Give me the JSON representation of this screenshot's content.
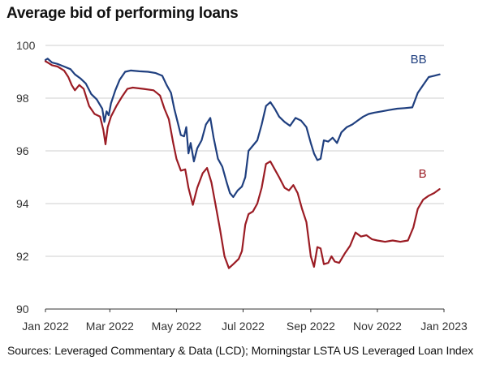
{
  "chart_data": {
    "type": "line",
    "title": "Average bid of performing loans",
    "xlabel": "",
    "ylabel": "",
    "source": "Sources: Leveraged Commentary & Data (LCD); Morningstar LSTA US Leveraged Loan Index",
    "ylim": [
      90,
      100
    ],
    "yticks": [
      90,
      92,
      94,
      96,
      98,
      100
    ],
    "xticks": [
      {
        "label": "Jan 2022",
        "value": "2022-01-01"
      },
      {
        "label": "Mar 2022",
        "value": "2022-03-01"
      },
      {
        "label": "May 2022",
        "value": "2022-05-01"
      },
      {
        "label": "Jul 2022",
        "value": "2022-07-01"
      },
      {
        "label": "Sep 2022",
        "value": "2022-09-01"
      },
      {
        "label": "Nov 2022",
        "value": "2022-11-01"
      },
      {
        "label": "Jan 2023",
        "value": "2023-01-01"
      }
    ],
    "xlim": [
      "2022-01-01",
      "2023-01-01"
    ],
    "grid": "horizontal",
    "legend": "inline labels at line ends",
    "series": [
      {
        "name": "BB",
        "color": "#1f3f7f",
        "points": [
          [
            "2022-01-01",
            99.45
          ],
          [
            "2022-01-03",
            99.5
          ],
          [
            "2022-01-07",
            99.35
          ],
          [
            "2022-01-12",
            99.3
          ],
          [
            "2022-01-18",
            99.2
          ],
          [
            "2022-01-24",
            99.1
          ],
          [
            "2022-01-28",
            98.9
          ],
          [
            "2022-02-02",
            98.75
          ],
          [
            "2022-02-07",
            98.55
          ],
          [
            "2022-02-12",
            98.15
          ],
          [
            "2022-02-17",
            97.95
          ],
          [
            "2022-02-22",
            97.6
          ],
          [
            "2022-02-24",
            97.1
          ],
          [
            "2022-02-26",
            97.5
          ],
          [
            "2022-02-28",
            97.35
          ],
          [
            "2022-03-02",
            97.8
          ],
          [
            "2022-03-06",
            98.3
          ],
          [
            "2022-03-10",
            98.7
          ],
          [
            "2022-03-15",
            99.0
          ],
          [
            "2022-03-20",
            99.05
          ],
          [
            "2022-03-28",
            99.02
          ],
          [
            "2022-04-05",
            99.0
          ],
          [
            "2022-04-12",
            98.95
          ],
          [
            "2022-04-18",
            98.85
          ],
          [
            "2022-04-22",
            98.5
          ],
          [
            "2022-04-26",
            98.2
          ],
          [
            "2022-04-29",
            97.6
          ],
          [
            "2022-05-02",
            97.1
          ],
          [
            "2022-05-05",
            96.6
          ],
          [
            "2022-05-08",
            96.55
          ],
          [
            "2022-05-10",
            96.9
          ],
          [
            "2022-05-12",
            95.9
          ],
          [
            "2022-05-14",
            96.3
          ],
          [
            "2022-05-17",
            95.6
          ],
          [
            "2022-05-20",
            96.1
          ],
          [
            "2022-05-24",
            96.4
          ],
          [
            "2022-05-28",
            97.0
          ],
          [
            "2022-06-01",
            97.25
          ],
          [
            "2022-06-04",
            96.5
          ],
          [
            "2022-06-08",
            95.7
          ],
          [
            "2022-06-12",
            95.4
          ],
          [
            "2022-06-16",
            94.8
          ],
          [
            "2022-06-19",
            94.4
          ],
          [
            "2022-06-22",
            94.25
          ],
          [
            "2022-06-26",
            94.5
          ],
          [
            "2022-06-30",
            94.65
          ],
          [
            "2022-07-03",
            95.0
          ],
          [
            "2022-07-06",
            96.0
          ],
          [
            "2022-07-10",
            96.2
          ],
          [
            "2022-07-14",
            96.4
          ],
          [
            "2022-07-18",
            97.0
          ],
          [
            "2022-07-22",
            97.7
          ],
          [
            "2022-07-26",
            97.85
          ],
          [
            "2022-07-30",
            97.6
          ],
          [
            "2022-08-03",
            97.3
          ],
          [
            "2022-08-08",
            97.1
          ],
          [
            "2022-08-13",
            96.95
          ],
          [
            "2022-08-18",
            97.25
          ],
          [
            "2022-08-23",
            97.15
          ],
          [
            "2022-08-28",
            96.9
          ],
          [
            "2022-09-01",
            96.3
          ],
          [
            "2022-09-04",
            95.9
          ],
          [
            "2022-09-07",
            95.65
          ],
          [
            "2022-09-10",
            95.7
          ],
          [
            "2022-09-13",
            96.4
          ],
          [
            "2022-09-17",
            96.35
          ],
          [
            "2022-09-21",
            96.5
          ],
          [
            "2022-09-25",
            96.3
          ],
          [
            "2022-09-29",
            96.7
          ],
          [
            "2022-10-04",
            96.9
          ],
          [
            "2022-10-09",
            97.0
          ],
          [
            "2022-10-14",
            97.15
          ],
          [
            "2022-10-19",
            97.3
          ],
          [
            "2022-10-24",
            97.4
          ],
          [
            "2022-10-29",
            97.45
          ],
          [
            "2022-11-05",
            97.5
          ],
          [
            "2022-11-12",
            97.55
          ],
          [
            "2022-11-19",
            97.6
          ],
          [
            "2022-11-26",
            97.62
          ],
          [
            "2022-12-03",
            97.65
          ],
          [
            "2022-12-08",
            98.2
          ],
          [
            "2022-12-13",
            98.5
          ],
          [
            "2022-12-18",
            98.8
          ],
          [
            "2022-12-23",
            98.85
          ],
          [
            "2022-12-28",
            98.9
          ]
        ]
      },
      {
        "name": "B",
        "color": "#9b1c24",
        "points": [
          [
            "2022-01-01",
            99.4
          ],
          [
            "2022-01-03",
            99.35
          ],
          [
            "2022-01-07",
            99.25
          ],
          [
            "2022-01-12",
            99.2
          ],
          [
            "2022-01-18",
            99.05
          ],
          [
            "2022-01-22",
            98.8
          ],
          [
            "2022-01-25",
            98.5
          ],
          [
            "2022-01-28",
            98.3
          ],
          [
            "2022-02-01",
            98.5
          ],
          [
            "2022-02-05",
            98.35
          ],
          [
            "2022-02-10",
            97.7
          ],
          [
            "2022-02-15",
            97.4
          ],
          [
            "2022-02-20",
            97.3
          ],
          [
            "2022-02-23",
            96.8
          ],
          [
            "2022-02-25",
            96.25
          ],
          [
            "2022-02-27",
            96.9
          ],
          [
            "2022-03-02",
            97.3
          ],
          [
            "2022-03-07",
            97.7
          ],
          [
            "2022-03-12",
            98.05
          ],
          [
            "2022-03-17",
            98.35
          ],
          [
            "2022-03-22",
            98.4
          ],
          [
            "2022-04-01",
            98.35
          ],
          [
            "2022-04-10",
            98.3
          ],
          [
            "2022-04-16",
            98.1
          ],
          [
            "2022-04-20",
            97.6
          ],
          [
            "2022-04-24",
            97.2
          ],
          [
            "2022-04-28",
            96.3
          ],
          [
            "2022-05-01",
            95.7
          ],
          [
            "2022-05-05",
            95.25
          ],
          [
            "2022-05-09",
            95.3
          ],
          [
            "2022-05-12",
            94.6
          ],
          [
            "2022-05-16",
            93.95
          ],
          [
            "2022-05-20",
            94.6
          ],
          [
            "2022-05-25",
            95.15
          ],
          [
            "2022-05-29",
            95.35
          ],
          [
            "2022-06-02",
            94.8
          ],
          [
            "2022-06-06",
            93.9
          ],
          [
            "2022-06-10",
            93.0
          ],
          [
            "2022-06-14",
            92.0
          ],
          [
            "2022-06-18",
            91.55
          ],
          [
            "2022-06-22",
            91.7
          ],
          [
            "2022-06-27",
            91.9
          ],
          [
            "2022-06-30",
            92.2
          ],
          [
            "2022-07-03",
            93.2
          ],
          [
            "2022-07-06",
            93.6
          ],
          [
            "2022-07-10",
            93.7
          ],
          [
            "2022-07-14",
            94.0
          ],
          [
            "2022-07-18",
            94.6
          ],
          [
            "2022-07-22",
            95.5
          ],
          [
            "2022-07-26",
            95.6
          ],
          [
            "2022-07-30",
            95.3
          ],
          [
            "2022-08-03",
            95.0
          ],
          [
            "2022-08-08",
            94.6
          ],
          [
            "2022-08-12",
            94.5
          ],
          [
            "2022-08-16",
            94.7
          ],
          [
            "2022-08-20",
            94.4
          ],
          [
            "2022-08-24",
            93.8
          ],
          [
            "2022-08-28",
            93.3
          ],
          [
            "2022-09-01",
            92.0
          ],
          [
            "2022-09-04",
            91.6
          ],
          [
            "2022-09-07",
            92.35
          ],
          [
            "2022-09-10",
            92.3
          ],
          [
            "2022-09-13",
            91.7
          ],
          [
            "2022-09-17",
            91.75
          ],
          [
            "2022-09-20",
            92.0
          ],
          [
            "2022-09-23",
            91.8
          ],
          [
            "2022-09-27",
            91.75
          ],
          [
            "2022-10-02",
            92.1
          ],
          [
            "2022-10-07",
            92.4
          ],
          [
            "2022-10-12",
            92.9
          ],
          [
            "2022-10-17",
            92.75
          ],
          [
            "2022-10-22",
            92.8
          ],
          [
            "2022-10-27",
            92.65
          ],
          [
            "2022-11-01",
            92.6
          ],
          [
            "2022-11-08",
            92.55
          ],
          [
            "2022-11-15",
            92.6
          ],
          [
            "2022-11-22",
            92.55
          ],
          [
            "2022-11-29",
            92.6
          ],
          [
            "2022-12-04",
            93.1
          ],
          [
            "2022-12-08",
            93.8
          ],
          [
            "2022-12-13",
            94.15
          ],
          [
            "2022-12-18",
            94.3
          ],
          [
            "2022-12-23",
            94.4
          ],
          [
            "2022-12-28",
            94.55
          ]
        ]
      }
    ]
  }
}
